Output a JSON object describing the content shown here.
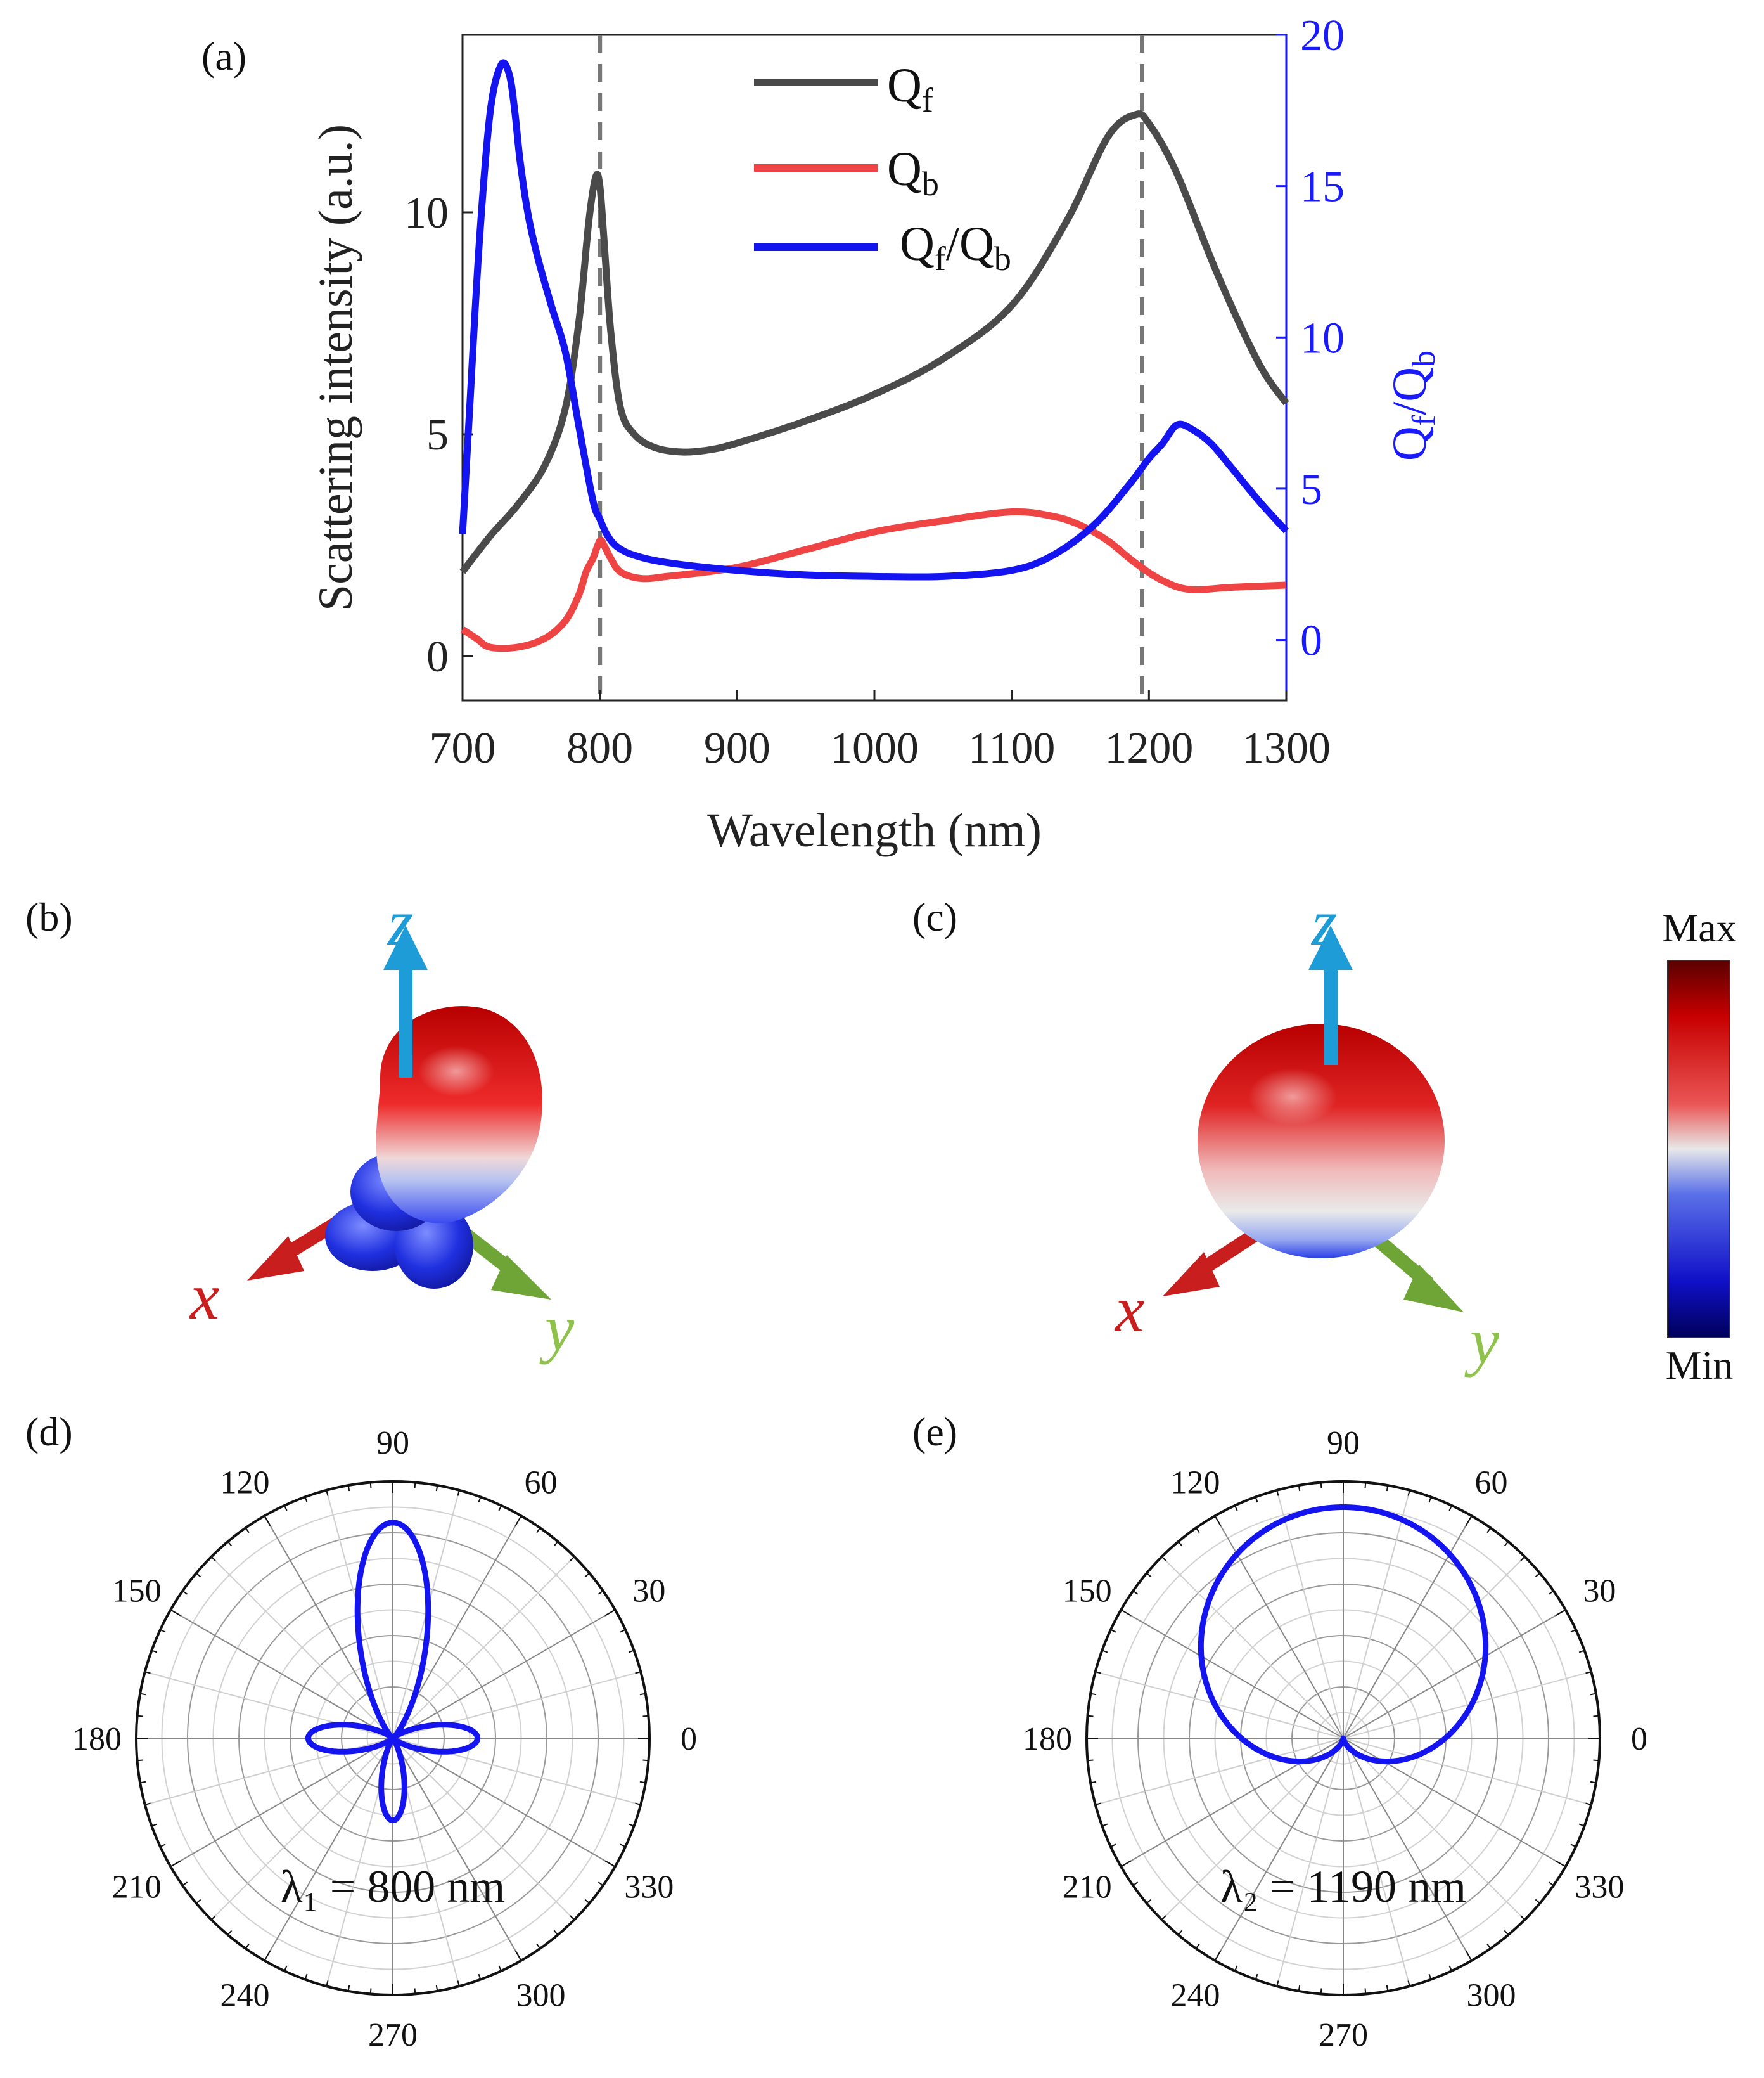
{
  "panels": {
    "a": "(a)",
    "b": "(b)",
    "c": "(c)",
    "d": "(d)",
    "e": "(e)"
  },
  "colors": {
    "qf": "#4a4a4a",
    "qb": "#ee4444",
    "ratio": "#1414f0",
    "right_axis": "#1a1aff",
    "dashed": "#777777",
    "x_axis": "#c81e1e",
    "y_axis": "#6fa536",
    "z_axis": "#1e9cd8"
  },
  "chart_data": [
    {
      "id": "a",
      "type": "line",
      "xlabel": "Wavelength (nm)",
      "ylabel": "Scattering intensity (a.u.)",
      "y2label": "Qf/Qb",
      "xlim": [
        700,
        1300
      ],
      "ylim": [
        -1,
        14
      ],
      "y2lim": [
        -2,
        20
      ],
      "xticks": [
        700,
        800,
        900,
        1000,
        1100,
        1200,
        1300
      ],
      "yticks": [
        0,
        5,
        10
      ],
      "y2ticks": [
        0,
        5,
        10,
        15,
        20
      ],
      "vlines": [
        800,
        1195
      ],
      "legend": [
        "Qf",
        "Qb",
        "Qf/Qb"
      ],
      "series": [
        {
          "name": "Qf",
          "axis": "left",
          "x": [
            700,
            720,
            740,
            760,
            775,
            785,
            792,
            797,
            800,
            803,
            808,
            815,
            825,
            840,
            860,
            880,
            900,
            950,
            1000,
            1050,
            1100,
            1140,
            1170,
            1190,
            1200,
            1220,
            1250,
            1280,
            1300
          ],
          "y": [
            1.9,
            2.7,
            3.4,
            4.3,
            5.6,
            7.6,
            9.8,
            10.8,
            10.6,
            9.4,
            7.3,
            5.6,
            5.0,
            4.7,
            4.6,
            4.65,
            4.8,
            5.3,
            5.9,
            6.7,
            7.9,
            9.8,
            11.7,
            12.2,
            12.0,
            10.9,
            8.6,
            6.6,
            5.7
          ]
        },
        {
          "name": "Qb",
          "axis": "left",
          "x": [
            700,
            710,
            720,
            740,
            760,
            775,
            785,
            790,
            795,
            800,
            803,
            808,
            815,
            830,
            850,
            900,
            950,
            1000,
            1050,
            1100,
            1130,
            1150,
            1170,
            1190,
            1210,
            1230,
            1260,
            1300
          ],
          "y": [
            0.6,
            0.4,
            0.2,
            0.2,
            0.4,
            0.8,
            1.4,
            1.9,
            2.2,
            2.6,
            2.5,
            2.2,
            1.9,
            1.75,
            1.8,
            2.0,
            2.4,
            2.8,
            3.05,
            3.25,
            3.15,
            2.95,
            2.6,
            2.1,
            1.7,
            1.5,
            1.55,
            1.6
          ]
        },
        {
          "name": "Qf/Qb",
          "axis": "right",
          "x": [
            700,
            705,
            712,
            720,
            728,
            734,
            738,
            742,
            748,
            755,
            765,
            775,
            785,
            795,
            800,
            805,
            812,
            825,
            850,
            900,
            950,
            1000,
            1050,
            1100,
            1130,
            1160,
            1185,
            1200,
            1210,
            1220,
            1230,
            1245,
            1260,
            1280,
            1300
          ],
          "y": [
            3.5,
            7.5,
            13.0,
            17.4,
            19.0,
            18.7,
            17.5,
            15.8,
            14.0,
            12.6,
            11.0,
            9.5,
            7.0,
            4.6,
            4.0,
            3.5,
            3.1,
            2.8,
            2.55,
            2.3,
            2.15,
            2.1,
            2.1,
            2.3,
            2.8,
            3.8,
            5.1,
            6.0,
            6.5,
            7.1,
            7.0,
            6.5,
            5.7,
            4.6,
            3.6
          ]
        }
      ]
    },
    {
      "id": "d",
      "type": "polar",
      "angle_ticks": [
        90,
        60,
        30,
        0,
        330,
        300,
        270,
        240,
        210,
        180,
        150,
        120
      ],
      "annotation": "λ₁ = 800 nm",
      "pattern": {
        "r0": 0.0,
        "peak": 0.84,
        "side": 0.33,
        "back": 0.32
      }
    },
    {
      "id": "e",
      "type": "polar",
      "angle_ticks": [
        90,
        60,
        30,
        0,
        330,
        300,
        270,
        240,
        210,
        180,
        150,
        120
      ],
      "annotation": "λ₂ = 1190 nm",
      "pattern": {
        "forward": 0.9
      }
    }
  ],
  "scene_b": {
    "axes": {
      "x": "x",
      "y": "y",
      "z": "z"
    }
  },
  "scene_c": {
    "axes": {
      "x": "x",
      "y": "y",
      "z": "z"
    }
  },
  "colorbar": {
    "max_label": "Max",
    "min_label": "Min"
  }
}
